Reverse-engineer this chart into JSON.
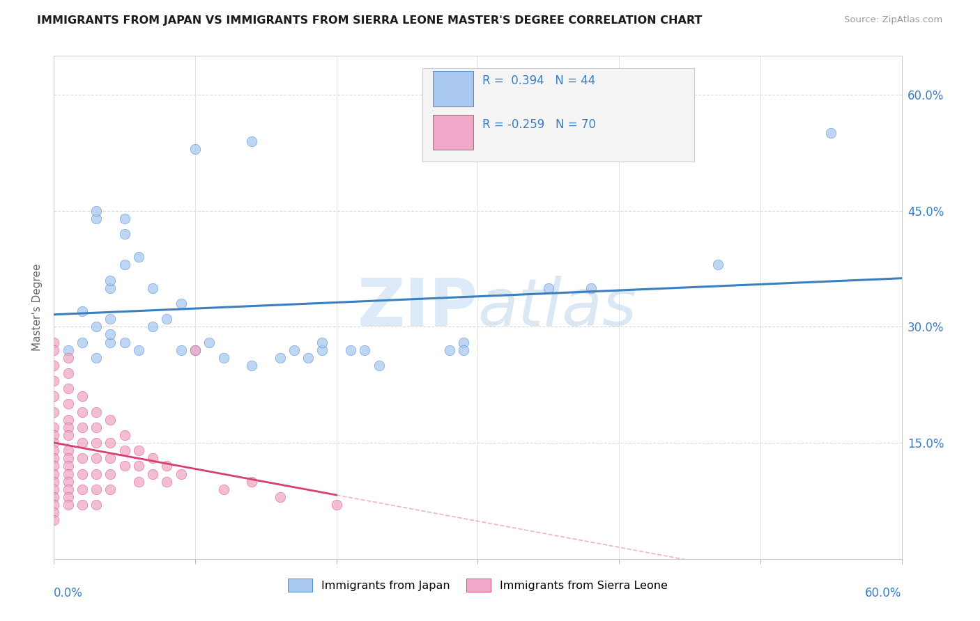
{
  "title": "IMMIGRANTS FROM JAPAN VS IMMIGRANTS FROM SIERRA LEONE MASTER'S DEGREE CORRELATION CHART",
  "source": "Source: ZipAtlas.com",
  "ylabel": "Master's Degree",
  "ylabel_ticks": [
    "15.0%",
    "30.0%",
    "45.0%",
    "60.0%"
  ],
  "ylabel_tick_vals": [
    0.15,
    0.3,
    0.45,
    0.6
  ],
  "xlim": [
    0.0,
    0.6
  ],
  "ylim": [
    0.0,
    0.65
  ],
  "color_japan": "#a8c8f0",
  "color_sierra": "#f0a8c8",
  "trendline_japan_color": "#3a7fc1",
  "trendline_sierra_color": "#d44070",
  "japan_scatter": [
    [
      0.01,
      0.27
    ],
    [
      0.02,
      0.32
    ],
    [
      0.02,
      0.28
    ],
    [
      0.03,
      0.3
    ],
    [
      0.03,
      0.26
    ],
    [
      0.03,
      0.44
    ],
    [
      0.03,
      0.45
    ],
    [
      0.04,
      0.31
    ],
    [
      0.04,
      0.28
    ],
    [
      0.04,
      0.35
    ],
    [
      0.04,
      0.36
    ],
    [
      0.04,
      0.29
    ],
    [
      0.05,
      0.42
    ],
    [
      0.05,
      0.44
    ],
    [
      0.05,
      0.38
    ],
    [
      0.05,
      0.28
    ],
    [
      0.06,
      0.39
    ],
    [
      0.06,
      0.27
    ],
    [
      0.07,
      0.35
    ],
    [
      0.07,
      0.3
    ],
    [
      0.08,
      0.31
    ],
    [
      0.09,
      0.33
    ],
    [
      0.09,
      0.27
    ],
    [
      0.1,
      0.27
    ],
    [
      0.1,
      0.53
    ],
    [
      0.11,
      0.28
    ],
    [
      0.12,
      0.26
    ],
    [
      0.14,
      0.54
    ],
    [
      0.14,
      0.25
    ],
    [
      0.16,
      0.26
    ],
    [
      0.17,
      0.27
    ],
    [
      0.18,
      0.26
    ],
    [
      0.19,
      0.27
    ],
    [
      0.19,
      0.28
    ],
    [
      0.21,
      0.27
    ],
    [
      0.22,
      0.27
    ],
    [
      0.23,
      0.25
    ],
    [
      0.28,
      0.27
    ],
    [
      0.29,
      0.28
    ],
    [
      0.29,
      0.27
    ],
    [
      0.35,
      0.35
    ],
    [
      0.38,
      0.35
    ],
    [
      0.47,
      0.38
    ],
    [
      0.55,
      0.55
    ]
  ],
  "sierra_scatter": [
    [
      0.0,
      0.28
    ],
    [
      0.0,
      0.27
    ],
    [
      0.0,
      0.25
    ],
    [
      0.0,
      0.23
    ],
    [
      0.0,
      0.21
    ],
    [
      0.0,
      0.19
    ],
    [
      0.0,
      0.17
    ],
    [
      0.0,
      0.16
    ],
    [
      0.0,
      0.15
    ],
    [
      0.0,
      0.14
    ],
    [
      0.0,
      0.13
    ],
    [
      0.0,
      0.12
    ],
    [
      0.0,
      0.11
    ],
    [
      0.0,
      0.1
    ],
    [
      0.0,
      0.09
    ],
    [
      0.0,
      0.08
    ],
    [
      0.0,
      0.07
    ],
    [
      0.0,
      0.06
    ],
    [
      0.0,
      0.05
    ],
    [
      0.01,
      0.26
    ],
    [
      0.01,
      0.24
    ],
    [
      0.01,
      0.22
    ],
    [
      0.01,
      0.2
    ],
    [
      0.01,
      0.18
    ],
    [
      0.01,
      0.17
    ],
    [
      0.01,
      0.16
    ],
    [
      0.01,
      0.14
    ],
    [
      0.01,
      0.13
    ],
    [
      0.01,
      0.12
    ],
    [
      0.01,
      0.11
    ],
    [
      0.01,
      0.1
    ],
    [
      0.01,
      0.09
    ],
    [
      0.01,
      0.08
    ],
    [
      0.01,
      0.07
    ],
    [
      0.02,
      0.21
    ],
    [
      0.02,
      0.19
    ],
    [
      0.02,
      0.17
    ],
    [
      0.02,
      0.15
    ],
    [
      0.02,
      0.13
    ],
    [
      0.02,
      0.11
    ],
    [
      0.02,
      0.09
    ],
    [
      0.02,
      0.07
    ],
    [
      0.03,
      0.19
    ],
    [
      0.03,
      0.17
    ],
    [
      0.03,
      0.15
    ],
    [
      0.03,
      0.13
    ],
    [
      0.03,
      0.11
    ],
    [
      0.03,
      0.09
    ],
    [
      0.03,
      0.07
    ],
    [
      0.04,
      0.18
    ],
    [
      0.04,
      0.15
    ],
    [
      0.04,
      0.13
    ],
    [
      0.04,
      0.11
    ],
    [
      0.04,
      0.09
    ],
    [
      0.05,
      0.16
    ],
    [
      0.05,
      0.14
    ],
    [
      0.05,
      0.12
    ],
    [
      0.06,
      0.14
    ],
    [
      0.06,
      0.12
    ],
    [
      0.06,
      0.1
    ],
    [
      0.07,
      0.13
    ],
    [
      0.07,
      0.11
    ],
    [
      0.08,
      0.12
    ],
    [
      0.08,
      0.1
    ],
    [
      0.09,
      0.11
    ],
    [
      0.1,
      0.27
    ],
    [
      0.12,
      0.09
    ],
    [
      0.14,
      0.1
    ],
    [
      0.16,
      0.08
    ],
    [
      0.2,
      0.07
    ]
  ],
  "watermark_zip": "ZIP",
  "watermark_atlas": "atlas",
  "background_color": "#ffffff",
  "grid_color": "#d8d8d8",
  "legend_box_color": "#f5f5f5",
  "legend_border_color": "#cccccc"
}
